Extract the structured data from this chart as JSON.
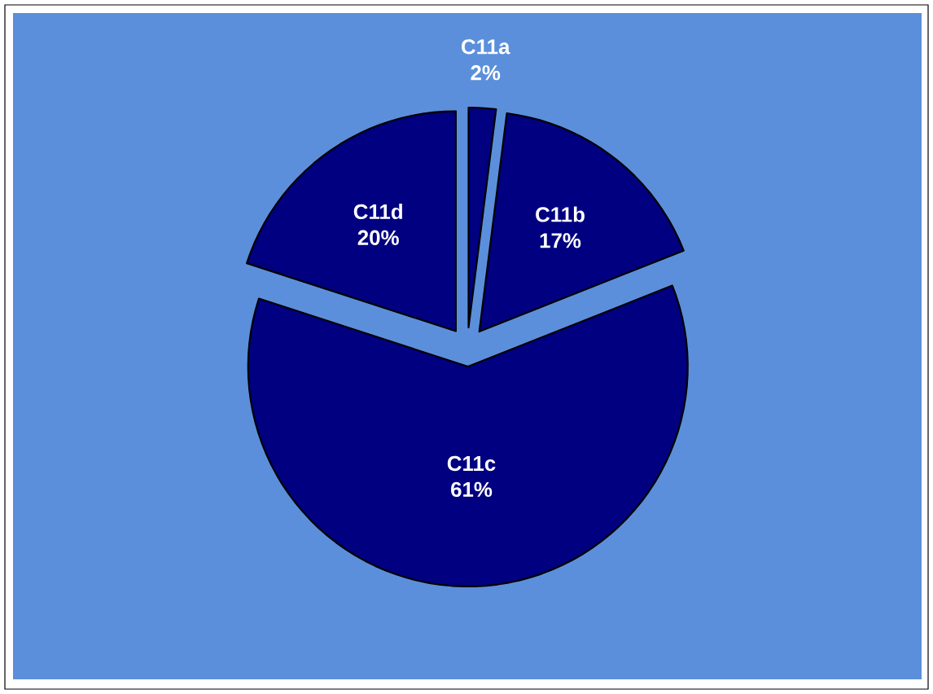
{
  "chart_data": {
    "type": "pie",
    "categories": [
      "C11a",
      "C11b",
      "C11c",
      "C11d"
    ],
    "values": [
      2,
      17,
      61,
      20
    ],
    "colors": [
      "#000080",
      "#000080",
      "#000080",
      "#000080"
    ],
    "value_labels": [
      "2%",
      "17%",
      "61%",
      "20%"
    ]
  }
}
